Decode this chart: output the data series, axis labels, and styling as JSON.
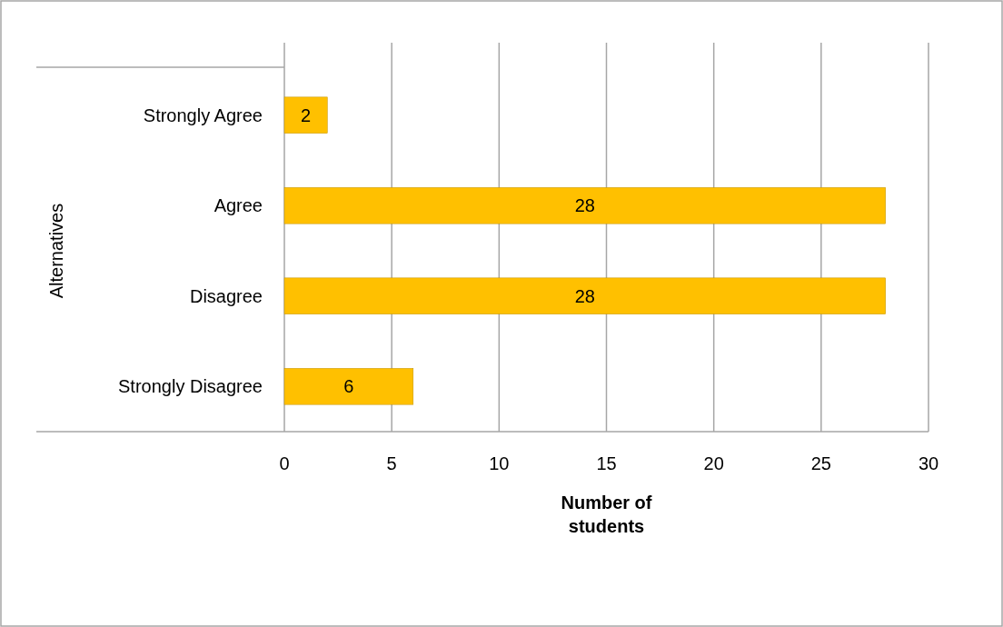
{
  "chart_data": {
    "type": "bar",
    "orientation": "horizontal",
    "categories": [
      "Strongly Agree",
      "Agree",
      "Disagree",
      "Strongly Disagree"
    ],
    "values": [
      2,
      28,
      28,
      6
    ],
    "color": "#ffc000",
    "xlim": [
      0,
      30
    ],
    "xticks": [
      0,
      5,
      10,
      15,
      20,
      25,
      30
    ],
    "xlabel": "Number of students",
    "ylabel": "Alternatives",
    "grid": "x",
    "data_labels": true
  }
}
